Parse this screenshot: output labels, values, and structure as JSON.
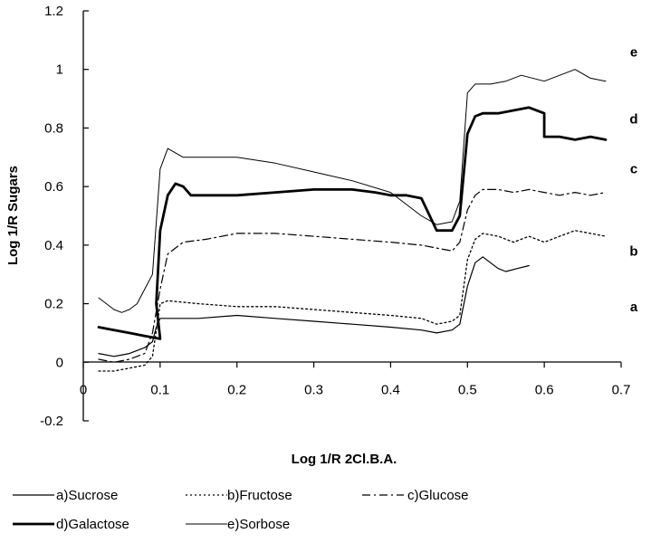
{
  "chart_data": {
    "type": "line",
    "title": "",
    "xlabel": "Log 1/R 2Cl.B.A.",
    "ylabel": "Log 1/R Sugars",
    "xlim": [
      0,
      0.7
    ],
    "ylim": [
      -0.2,
      1.2
    ],
    "x_ticks": [
      "0",
      "0.1",
      "0.2",
      "0.3",
      "0.4",
      "0.5",
      "0.6",
      "0.7"
    ],
    "y_ticks": [
      "-0.2",
      "0",
      "0.2",
      "0.4",
      "0.6",
      "0.8",
      "1",
      "1.2"
    ],
    "grid": false,
    "legend_position": "bottom",
    "series": [
      {
        "name": "a)Sucrose",
        "curve_label": "a",
        "style": "solid",
        "points": [
          [
            0.02,
            0.03
          ],
          [
            0.04,
            0.02
          ],
          [
            0.06,
            0.03
          ],
          [
            0.08,
            0.05
          ],
          [
            0.09,
            0.07
          ],
          [
            0.095,
            0.12
          ],
          [
            0.1,
            0.15
          ],
          [
            0.12,
            0.15
          ],
          [
            0.15,
            0.15
          ],
          [
            0.2,
            0.16
          ],
          [
            0.25,
            0.15
          ],
          [
            0.3,
            0.14
          ],
          [
            0.35,
            0.13
          ],
          [
            0.4,
            0.12
          ],
          [
            0.44,
            0.11
          ],
          [
            0.46,
            0.1
          ],
          [
            0.48,
            0.11
          ],
          [
            0.49,
            0.13
          ],
          [
            0.5,
            0.26
          ],
          [
            0.51,
            0.34
          ],
          [
            0.52,
            0.36
          ],
          [
            0.53,
            0.34
          ],
          [
            0.54,
            0.32
          ],
          [
            0.55,
            0.31
          ],
          [
            0.565,
            0.32
          ],
          [
            0.58,
            0.33
          ]
        ]
      },
      {
        "name": "b)Fructose",
        "curve_label": "b",
        "style": "dotted",
        "points": [
          [
            0.02,
            -0.03
          ],
          [
            0.04,
            -0.03
          ],
          [
            0.06,
            -0.02
          ],
          [
            0.08,
            -0.01
          ],
          [
            0.09,
            0.02
          ],
          [
            0.1,
            0.2
          ],
          [
            0.11,
            0.21
          ],
          [
            0.15,
            0.2
          ],
          [
            0.2,
            0.19
          ],
          [
            0.25,
            0.19
          ],
          [
            0.3,
            0.18
          ],
          [
            0.35,
            0.17
          ],
          [
            0.4,
            0.16
          ],
          [
            0.44,
            0.15
          ],
          [
            0.46,
            0.13
          ],
          [
            0.48,
            0.14
          ],
          [
            0.49,
            0.16
          ],
          [
            0.5,
            0.35
          ],
          [
            0.51,
            0.42
          ],
          [
            0.52,
            0.44
          ],
          [
            0.54,
            0.43
          ],
          [
            0.56,
            0.41
          ],
          [
            0.58,
            0.43
          ],
          [
            0.6,
            0.41
          ],
          [
            0.62,
            0.43
          ],
          [
            0.64,
            0.45
          ],
          [
            0.66,
            0.44
          ],
          [
            0.68,
            0.43
          ]
        ]
      },
      {
        "name": "c)Glucose",
        "curve_label": "c",
        "style": "dashdot",
        "points": [
          [
            0.02,
            0.01
          ],
          [
            0.04,
            0.0
          ],
          [
            0.06,
            0.01
          ],
          [
            0.08,
            0.03
          ],
          [
            0.09,
            0.1
          ],
          [
            0.1,
            0.25
          ],
          [
            0.11,
            0.37
          ],
          [
            0.13,
            0.41
          ],
          [
            0.16,
            0.42
          ],
          [
            0.2,
            0.44
          ],
          [
            0.25,
            0.44
          ],
          [
            0.3,
            0.43
          ],
          [
            0.35,
            0.42
          ],
          [
            0.4,
            0.41
          ],
          [
            0.44,
            0.4
          ],
          [
            0.46,
            0.39
          ],
          [
            0.48,
            0.38
          ],
          [
            0.49,
            0.41
          ],
          [
            0.5,
            0.52
          ],
          [
            0.51,
            0.57
          ],
          [
            0.52,
            0.59
          ],
          [
            0.54,
            0.59
          ],
          [
            0.56,
            0.58
          ],
          [
            0.58,
            0.59
          ],
          [
            0.6,
            0.58
          ],
          [
            0.62,
            0.57
          ],
          [
            0.64,
            0.58
          ],
          [
            0.66,
            0.57
          ],
          [
            0.68,
            0.58
          ]
        ]
      },
      {
        "name": "d)Galactose",
        "curve_label": "d",
        "style": "thick",
        "points": [
          [
            0.02,
            0.12
          ],
          [
            0.04,
            0.11
          ],
          [
            0.06,
            0.1
          ],
          [
            0.08,
            0.09
          ],
          [
            0.1,
            0.08
          ],
          [
            0.095,
            0.2
          ],
          [
            0.1,
            0.45
          ],
          [
            0.11,
            0.57
          ],
          [
            0.12,
            0.61
          ],
          [
            0.13,
            0.6
          ],
          [
            0.14,
            0.57
          ],
          [
            0.2,
            0.57
          ],
          [
            0.25,
            0.58
          ],
          [
            0.3,
            0.59
          ],
          [
            0.35,
            0.59
          ],
          [
            0.38,
            0.58
          ],
          [
            0.4,
            0.57
          ],
          [
            0.42,
            0.57
          ],
          [
            0.44,
            0.56
          ],
          [
            0.46,
            0.45
          ],
          [
            0.48,
            0.45
          ],
          [
            0.49,
            0.5
          ],
          [
            0.5,
            0.78
          ],
          [
            0.51,
            0.84
          ],
          [
            0.52,
            0.85
          ],
          [
            0.53,
            0.85
          ],
          [
            0.54,
            0.85
          ],
          [
            0.56,
            0.86
          ],
          [
            0.58,
            0.87
          ],
          [
            0.6,
            0.85
          ],
          [
            0.6,
            0.77
          ],
          [
            0.62,
            0.77
          ],
          [
            0.64,
            0.76
          ],
          [
            0.66,
            0.77
          ],
          [
            0.68,
            0.76
          ]
        ]
      },
      {
        "name": "e)Sorbose",
        "curve_label": "e",
        "style": "thin",
        "points": [
          [
            0.02,
            0.22
          ],
          [
            0.03,
            0.2
          ],
          [
            0.04,
            0.18
          ],
          [
            0.05,
            0.17
          ],
          [
            0.06,
            0.18
          ],
          [
            0.07,
            0.2
          ],
          [
            0.08,
            0.25
          ],
          [
            0.09,
            0.3
          ],
          [
            0.1,
            0.66
          ],
          [
            0.11,
            0.73
          ],
          [
            0.13,
            0.7
          ],
          [
            0.15,
            0.7
          ],
          [
            0.2,
            0.7
          ],
          [
            0.25,
            0.68
          ],
          [
            0.3,
            0.65
          ],
          [
            0.35,
            0.62
          ],
          [
            0.4,
            0.58
          ],
          [
            0.44,
            0.5
          ],
          [
            0.46,
            0.47
          ],
          [
            0.48,
            0.48
          ],
          [
            0.49,
            0.55
          ],
          [
            0.5,
            0.92
          ],
          [
            0.51,
            0.95
          ],
          [
            0.53,
            0.95
          ],
          [
            0.55,
            0.96
          ],
          [
            0.57,
            0.98
          ],
          [
            0.6,
            0.96
          ],
          [
            0.62,
            0.98
          ],
          [
            0.64,
            1.0
          ],
          [
            0.66,
            0.97
          ],
          [
            0.68,
            0.96
          ]
        ]
      }
    ],
    "legend": [
      {
        "label": "a)Sucrose",
        "style": "solid"
      },
      {
        "label": "b)Fructose",
        "style": "dotted"
      },
      {
        "label": "c)Glucose",
        "style": "dashdot"
      },
      {
        "label": "d)Galactose",
        "style": "thick"
      },
      {
        "label": "e)Sorbose",
        "style": "thin"
      }
    ]
  }
}
